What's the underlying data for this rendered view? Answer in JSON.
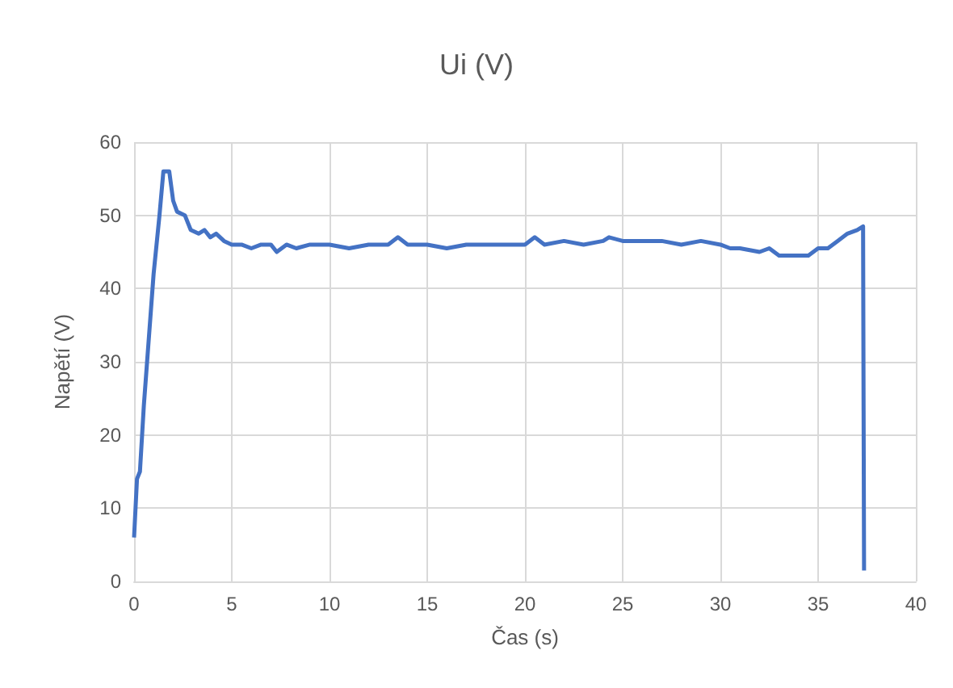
{
  "chart_data": {
    "type": "line",
    "title": "Ui (V)",
    "xlabel": "Čas (s)",
    "ylabel": "Napětí (V)",
    "xlim": [
      0,
      40
    ],
    "xticks": [
      0,
      5,
      10,
      15,
      20,
      25,
      30,
      35,
      40
    ],
    "ylim": [
      0,
      60
    ],
    "yticks": [
      0,
      10,
      20,
      30,
      40,
      50,
      60
    ],
    "grid": true,
    "marker": "none",
    "line_style": "solid",
    "series": [
      {
        "color": "#4472c4",
        "x": [
          0,
          0.15,
          0.3,
          0.5,
          1.0,
          1.3,
          1.5,
          1.8,
          2.0,
          2.2,
          2.6,
          2.9,
          3.3,
          3.6,
          3.9,
          4.2,
          4.6,
          5.0,
          5.5,
          6.0,
          6.5,
          7.0,
          7.3,
          7.8,
          8.3,
          9.0,
          10.0,
          11.0,
          12.0,
          13.0,
          13.5,
          14.0,
          15.0,
          16.0,
          17.0,
          18.0,
          19.0,
          20.0,
          20.5,
          21.0,
          22.0,
          23.0,
          24.0,
          24.3,
          25.0,
          26.0,
          27.0,
          28.0,
          29.0,
          30.0,
          30.5,
          31.0,
          32.0,
          32.5,
          33.0,
          34.0,
          34.5,
          35.0,
          35.5,
          36.0,
          36.5,
          37.0,
          37.3,
          37.35
        ],
        "values": [
          6,
          14,
          15,
          24,
          42,
          50,
          56,
          56,
          52,
          50.5,
          50,
          48,
          47.5,
          48,
          47,
          47.5,
          46.5,
          46,
          46,
          45.5,
          46,
          46,
          45,
          46,
          45.5,
          46,
          46,
          45.5,
          46,
          46,
          47,
          46,
          46,
          45.5,
          46,
          46,
          46,
          46,
          47,
          46,
          46.5,
          46,
          46.5,
          47,
          46.5,
          46.5,
          46.5,
          46,
          46.5,
          46,
          45.5,
          45.5,
          45,
          45.5,
          44.5,
          44.5,
          44.5,
          45.5,
          45.5,
          46.5,
          47.5,
          48,
          48.5,
          1.5
        ]
      }
    ]
  }
}
